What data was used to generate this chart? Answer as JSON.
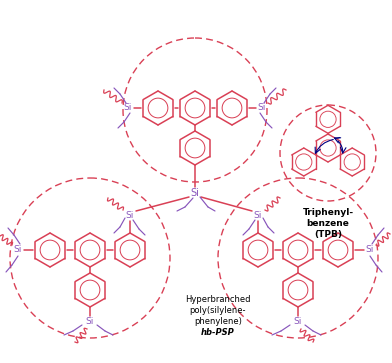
{
  "bg_color": "#ffffff",
  "ring_color": "#d94055",
  "si_color": "#8855bb",
  "circle_color": "#d94055",
  "label_tpb": "Triphenyl-\nbenzene\n(TPB)",
  "label_hbpsp_1": "Hyperbranched\npoly(silylene-\nphenylene)",
  "label_hbpsp_2": "hb-PSP",
  "figsize": [
    3.92,
    3.63
  ],
  "dpi": 100
}
